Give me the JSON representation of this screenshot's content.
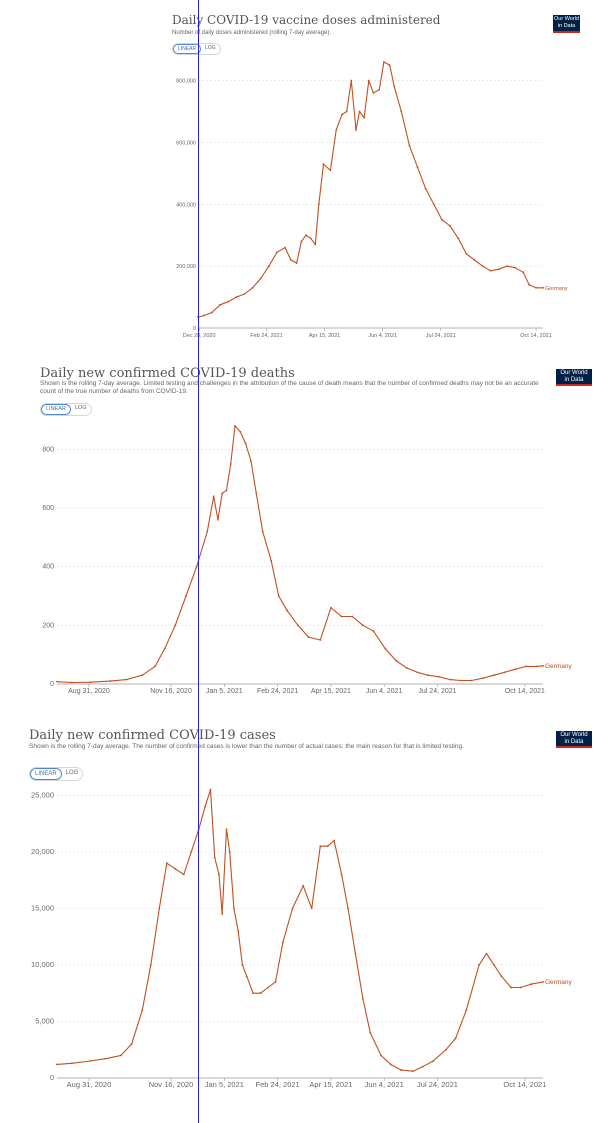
{
  "logo": {
    "line1": "Our World",
    "line2": "in Data"
  },
  "toggle": {
    "linear": "LINEAR",
    "log": "LOG"
  },
  "series_label": "Germany",
  "line_color": "#c0501f",
  "chart_data": [
    {
      "type": "line",
      "title": "Daily COVID-19 vaccine doses administered",
      "subtitle": "Number of daily doses administered (rolling 7-day average).",
      "ylim": [
        0,
        860000
      ],
      "yticks": [
        "0",
        "200,000",
        "400,000",
        "600,000",
        "800,000"
      ],
      "ytick_values": [
        0,
        200000,
        400000,
        600000,
        800000
      ],
      "xticks": [
        "Dec 28, 2020",
        "Feb 24, 2021",
        "Apr 15, 2021",
        "Jun 4, 2021",
        "Jul 24, 2021",
        "Oct 14, 2021"
      ],
      "xtick_values": [
        "2020-12-28",
        "2021-02-24",
        "2021-04-15",
        "2021-06-04",
        "2021-07-24",
        "2021-10-14"
      ],
      "xlim": [
        "2020-12-27",
        "2021-10-20"
      ],
      "grid": true,
      "series": [
        {
          "name": "Germany",
          "x": [
            "2020-12-27",
            "2021-01-01",
            "2021-01-08",
            "2021-01-15",
            "2021-01-22",
            "2021-01-29",
            "2021-02-05",
            "2021-02-12",
            "2021-02-19",
            "2021-02-26",
            "2021-03-05",
            "2021-03-12",
            "2021-03-17",
            "2021-03-22",
            "2021-03-26",
            "2021-03-30",
            "2021-04-03",
            "2021-04-07",
            "2021-04-10",
            "2021-04-14",
            "2021-04-20",
            "2021-04-25",
            "2021-04-30",
            "2021-05-04",
            "2021-05-08",
            "2021-05-12",
            "2021-05-15",
            "2021-05-19",
            "2021-05-23",
            "2021-05-27",
            "2021-06-01",
            "2021-06-05",
            "2021-06-10",
            "2021-06-14",
            "2021-06-20",
            "2021-06-27",
            "2021-07-04",
            "2021-07-11",
            "2021-07-18",
            "2021-07-25",
            "2021-08-01",
            "2021-08-08",
            "2021-08-15",
            "2021-08-22",
            "2021-08-29",
            "2021-09-05",
            "2021-09-12",
            "2021-09-19",
            "2021-09-26",
            "2021-10-03",
            "2021-10-08",
            "2021-10-14",
            "2021-10-20"
          ],
          "values": [
            35000,
            40000,
            50000,
            75000,
            85000,
            100000,
            110000,
            130000,
            160000,
            200000,
            245000,
            260000,
            220000,
            210000,
            280000,
            300000,
            290000,
            270000,
            400000,
            530000,
            510000,
            640000,
            690000,
            700000,
            800000,
            640000,
            700000,
            680000,
            800000,
            760000,
            770000,
            860000,
            850000,
            780000,
            700000,
            590000,
            520000,
            450000,
            400000,
            350000,
            330000,
            290000,
            240000,
            220000,
            200000,
            185000,
            190000,
            200000,
            195000,
            180000,
            140000,
            130000,
            130000
          ]
        }
      ]
    },
    {
      "type": "line",
      "title": "Daily new confirmed COVID-19 deaths",
      "subtitle": "Shown is the rolling 7-day average. Limited testing and challenges in the attribution of the cause of death means that the number of confirmed deaths may not be an accurate count of the true number of deaths from COVID-19.",
      "ylim": [
        0,
        900
      ],
      "yticks": [
        "0",
        "200",
        "400",
        "600",
        "800"
      ],
      "ytick_values": [
        0,
        200,
        400,
        600,
        800
      ],
      "xticks": [
        "Aug 31, 2020",
        "Nov 16, 2020",
        "Jan 5, 2021",
        "Feb 24, 2021",
        "Apr 15, 2021",
        "Jun 4, 2021",
        "Jul 24, 2021",
        "Oct 14, 2021"
      ],
      "xtick_values": [
        "2020-08-31",
        "2020-11-16",
        "2021-01-05",
        "2021-02-24",
        "2021-04-15",
        "2021-06-04",
        "2021-07-24",
        "2021-10-14"
      ],
      "xlim": [
        "2020-08-01",
        "2021-10-31"
      ],
      "grid": true,
      "series": [
        {
          "name": "Germany",
          "x": [
            "2020-08-01",
            "2020-08-15",
            "2020-09-01",
            "2020-09-20",
            "2020-10-05",
            "2020-10-20",
            "2020-11-01",
            "2020-11-10",
            "2020-11-20",
            "2020-11-30",
            "2020-12-10",
            "2020-12-20",
            "2020-12-26",
            "2020-12-30",
            "2021-01-03",
            "2021-01-07",
            "2021-01-11",
            "2021-01-15",
            "2021-01-20",
            "2021-01-25",
            "2021-01-30",
            "2021-02-04",
            "2021-02-10",
            "2021-02-18",
            "2021-02-25",
            "2021-03-05",
            "2021-03-15",
            "2021-03-25",
            "2021-04-05",
            "2021-04-15",
            "2021-04-25",
            "2021-05-05",
            "2021-05-15",
            "2021-05-25",
            "2021-06-05",
            "2021-06-15",
            "2021-06-25",
            "2021-07-05",
            "2021-07-15",
            "2021-07-25",
            "2021-08-05",
            "2021-08-15",
            "2021-08-25",
            "2021-09-05",
            "2021-09-15",
            "2021-09-25",
            "2021-10-05",
            "2021-10-15",
            "2021-10-25",
            "2021-10-31"
          ],
          "values": [
            8,
            5,
            6,
            10,
            15,
            30,
            60,
            120,
            200,
            300,
            400,
            520,
            640,
            560,
            650,
            660,
            750,
            880,
            860,
            820,
            760,
            650,
            520,
            420,
            300,
            250,
            200,
            160,
            150,
            260,
            230,
            230,
            200,
            180,
            120,
            80,
            55,
            40,
            30,
            25,
            15,
            12,
            12,
            20,
            30,
            40,
            50,
            60,
            60,
            62
          ]
        }
      ]
    },
    {
      "type": "line",
      "title": "Daily new confirmed COVID-19 cases",
      "subtitle": "Shown is the rolling 7-day average. The number of confirmed cases is lower than the number of actual cases; the main reason for that is limited testing.",
      "ylim": [
        0,
        26000
      ],
      "yticks": [
        "0",
        "5,000",
        "10,000",
        "15,000",
        "20,000",
        "25,000"
      ],
      "ytick_values": [
        0,
        5000,
        10000,
        15000,
        20000,
        25000
      ],
      "xticks": [
        "Aug 31, 2020",
        "Nov 16, 2020",
        "Jan 5, 2021",
        "Feb 24, 2021",
        "Apr 15, 2021",
        "Jun 4, 2021",
        "Jul 24, 2021",
        "Oct 14, 2021"
      ],
      "xtick_values": [
        "2020-08-31",
        "2020-11-16",
        "2021-01-05",
        "2021-02-24",
        "2021-04-15",
        "2021-06-04",
        "2021-07-24",
        "2021-10-14"
      ],
      "xlim": [
        "2020-08-01",
        "2021-10-31"
      ],
      "grid": true,
      "series": [
        {
          "name": "Germany",
          "x": [
            "2020-08-01",
            "2020-08-15",
            "2020-09-01",
            "2020-09-15",
            "2020-09-30",
            "2020-10-10",
            "2020-10-20",
            "2020-10-28",
            "2020-11-05",
            "2020-11-12",
            "2020-11-20",
            "2020-11-28",
            "2020-12-05",
            "2020-12-12",
            "2020-12-18",
            "2020-12-23",
            "2020-12-27",
            "2020-12-31",
            "2021-01-03",
            "2021-01-07",
            "2021-01-10",
            "2021-01-14",
            "2021-01-18",
            "2021-01-22",
            "2021-01-26",
            "2021-02-01",
            "2021-02-08",
            "2021-02-15",
            "2021-02-22",
            "2021-03-01",
            "2021-03-10",
            "2021-03-20",
            "2021-03-28",
            "2021-04-05",
            "2021-04-12",
            "2021-04-18",
            "2021-04-25",
            "2021-05-01",
            "2021-05-08",
            "2021-05-15",
            "2021-05-22",
            "2021-06-01",
            "2021-06-10",
            "2021-06-20",
            "2021-07-01",
            "2021-07-10",
            "2021-07-20",
            "2021-08-01",
            "2021-08-10",
            "2021-08-20",
            "2021-09-01",
            "2021-09-08",
            "2021-09-15",
            "2021-09-22",
            "2021-10-01",
            "2021-10-10",
            "2021-10-20",
            "2021-10-31"
          ],
          "values": [
            1200,
            1300,
            1500,
            1700,
            2000,
            3000,
            6000,
            10000,
            15000,
            19000,
            18500,
            18000,
            20000,
            22000,
            24000,
            25500,
            19500,
            18000,
            14500,
            22000,
            20000,
            15000,
            13000,
            10000,
            9000,
            7500,
            7500,
            8000,
            8500,
            12000,
            15000,
            17000,
            15000,
            20500,
            20500,
            21000,
            18000,
            15000,
            11000,
            7000,
            4000,
            2000,
            1200,
            700,
            600,
            1000,
            1500,
            2500,
            3500,
            6000,
            10000,
            11000,
            10000,
            9000,
            8000,
            8000,
            8300,
            8500
          ]
        }
      ]
    }
  ]
}
